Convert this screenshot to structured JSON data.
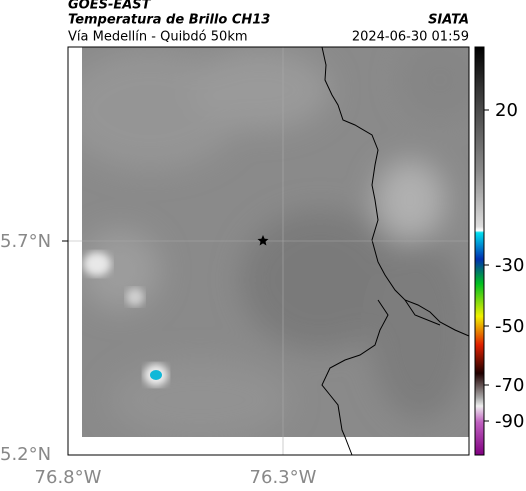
{
  "header": {
    "title": "GOES-EAST",
    "subtitle": "Temperatura de Brillo CH13",
    "source": "SIATA",
    "location": "Vía Medellín - Quibdó 50km",
    "timestamp": "2024-06-30 01:59"
  },
  "map": {
    "lat_ticks": [
      "5.7°N",
      "5.2°N"
    ],
    "lon_ticks": [
      "76.8°W",
      "76.3°W"
    ]
  },
  "colorbar": {
    "ticks": [
      "20",
      "-30",
      "-50",
      "-70",
      "-90"
    ]
  }
}
